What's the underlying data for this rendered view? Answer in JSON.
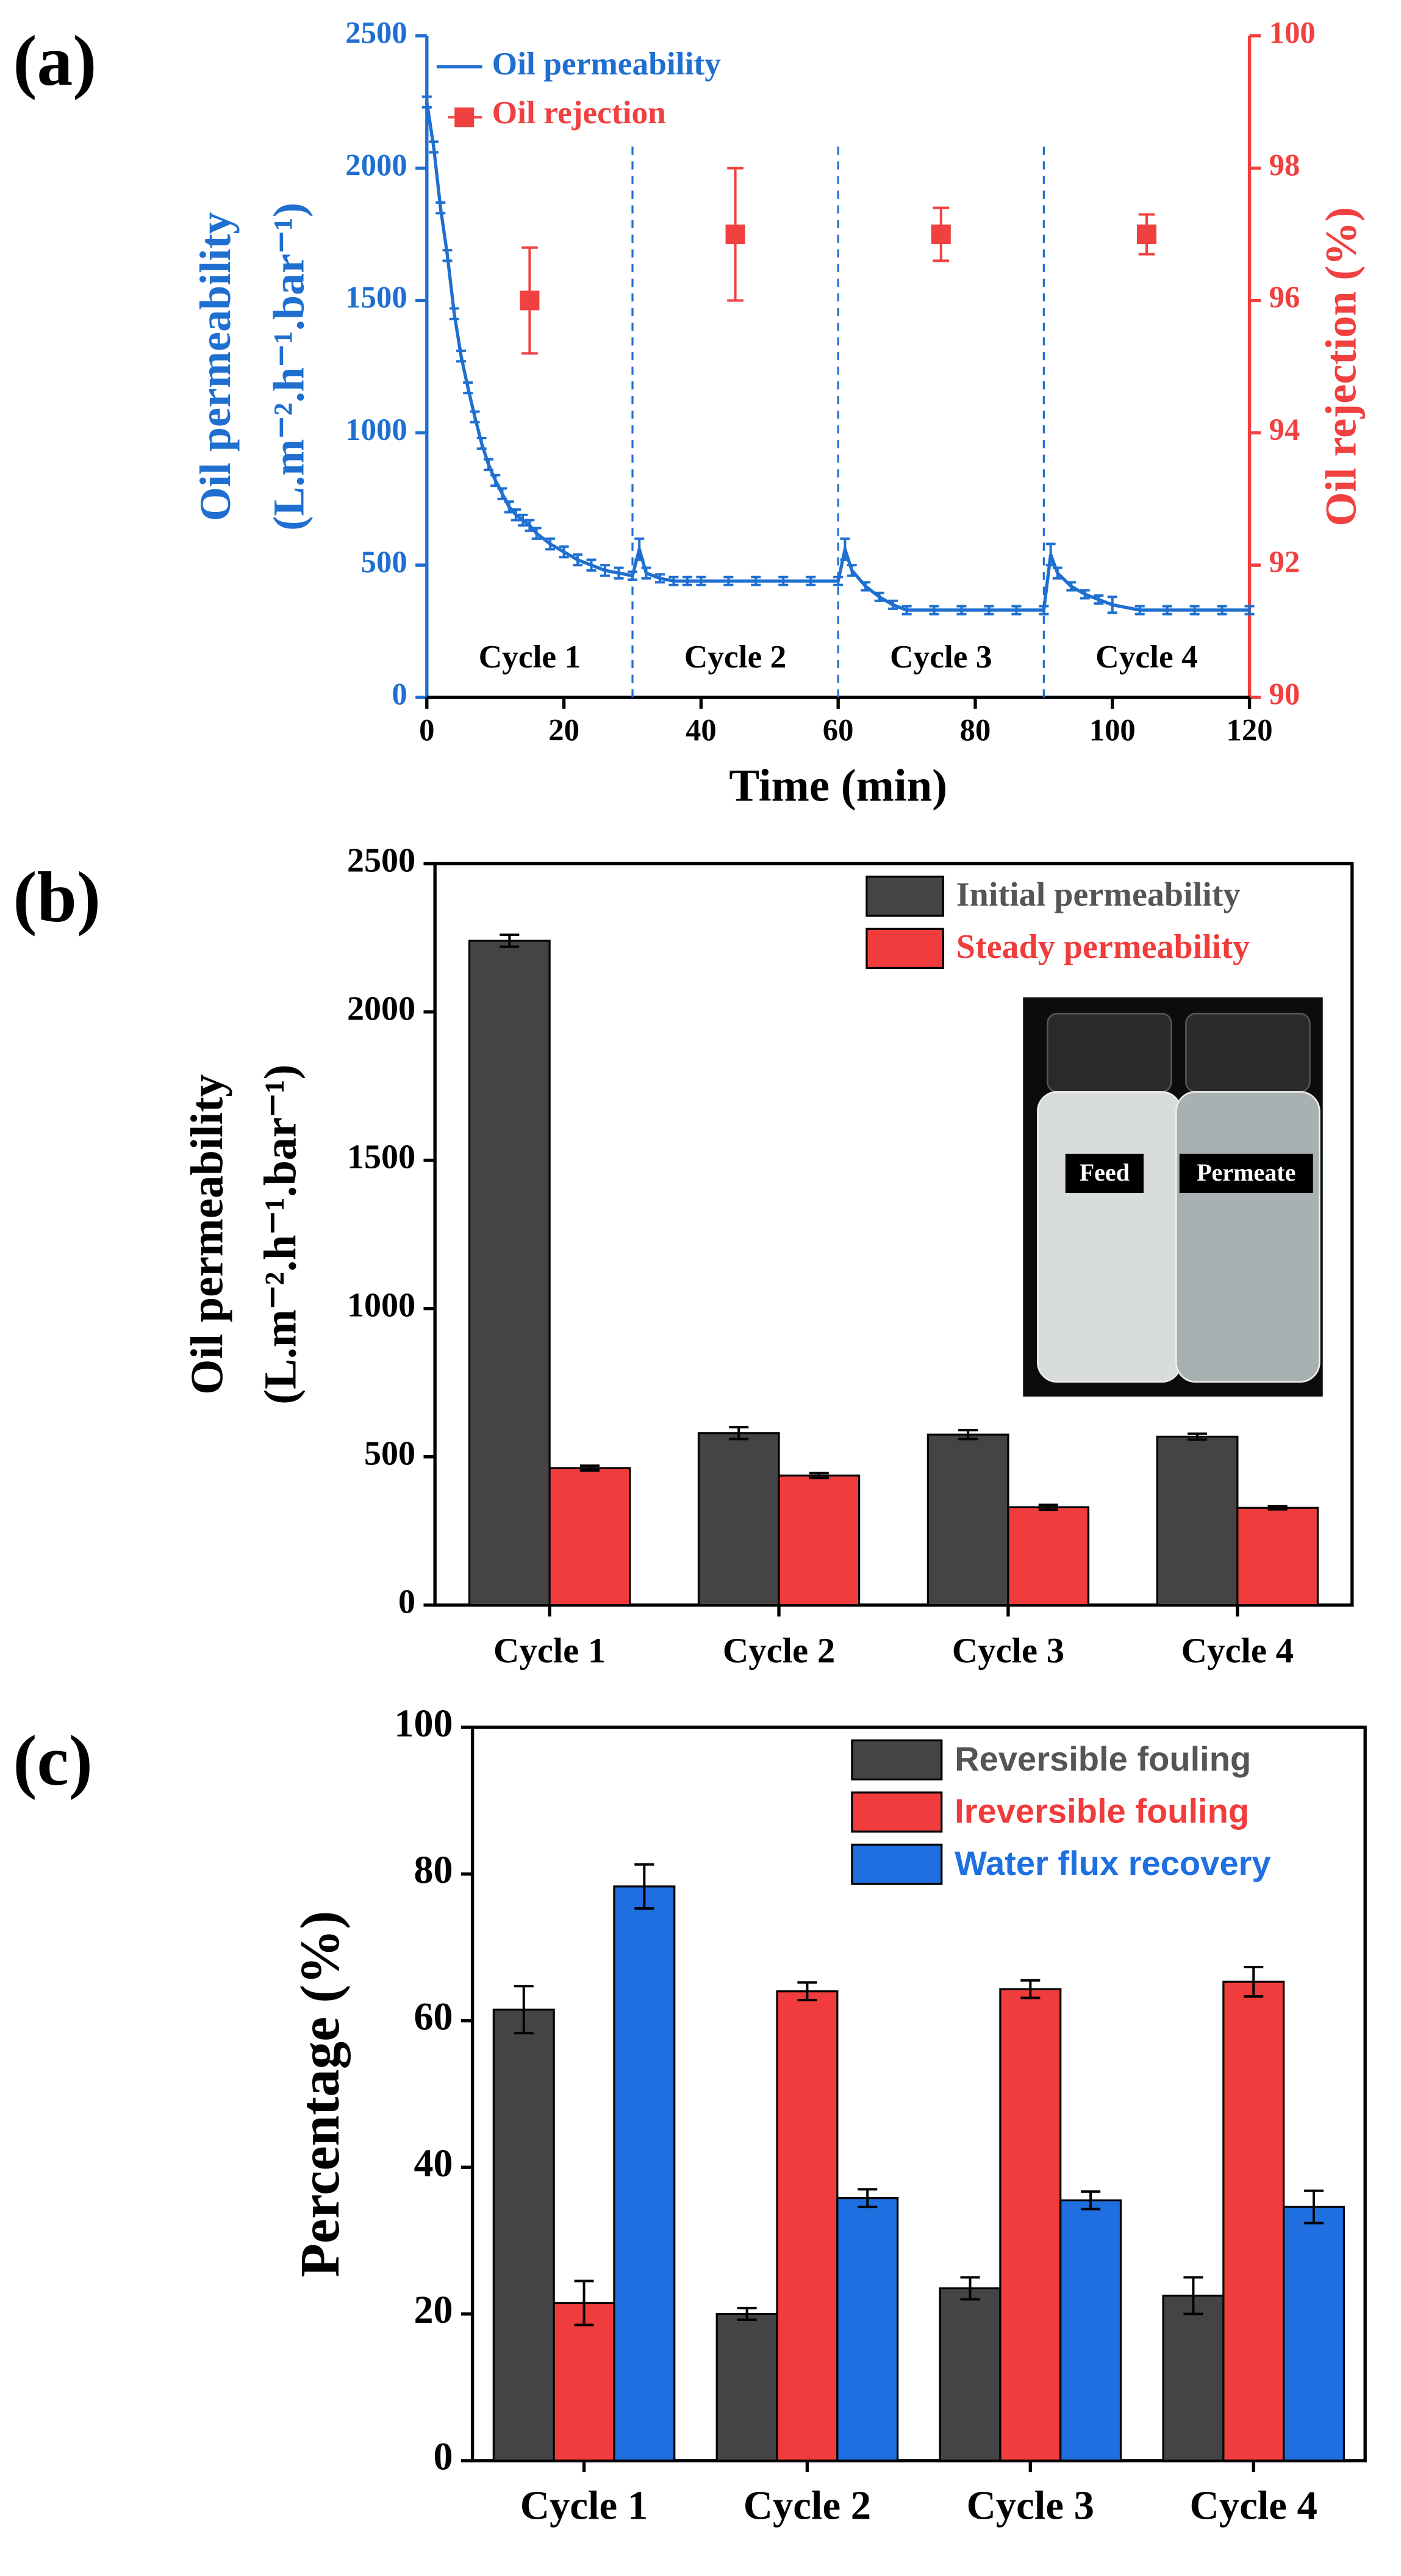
{
  "chart_data": [
    {
      "type": "line",
      "panel_label": "(a)",
      "x_label": "Time (min)",
      "y_label": [
        "Oil permeability",
        "(L.m⁻².h⁻¹.bar⁻¹)"
      ],
      "y2_label": "Oil rejection (%)",
      "xlim": [
        0,
        120
      ],
      "xticks": [
        0,
        20,
        40,
        60,
        80,
        100,
        120
      ],
      "ylim": [
        0,
        2500
      ],
      "yticks": [
        0,
        500,
        1000,
        1500,
        2000,
        2500
      ],
      "y2lim": [
        90,
        100
      ],
      "y2ticks": [
        90,
        92,
        94,
        96,
        98,
        100
      ],
      "cycle_boundaries": [
        30,
        60,
        90
      ],
      "cycle_labels": [
        "Cycle 1",
        "Cycle 2",
        "Cycle 3",
        "Cycle 4"
      ],
      "legend": "upper left",
      "series": [
        {
          "name": "Oil permeability",
          "color": "#1f6fd1",
          "x": [
            0,
            1,
            2,
            3,
            4,
            5,
            6,
            7,
            8,
            9,
            10,
            11,
            12,
            13,
            14,
            15,
            16,
            18,
            20,
            22,
            24,
            26,
            28,
            30,
            31,
            32,
            34,
            36,
            38,
            40,
            44,
            48,
            52,
            56,
            60,
            61,
            62,
            64,
            66,
            68,
            70,
            74,
            78,
            82,
            86,
            90,
            91,
            92,
            94,
            96,
            98,
            100,
            104,
            108,
            112,
            116,
            120
          ],
          "values": [
            2250,
            2080,
            1850,
            1670,
            1450,
            1290,
            1170,
            1060,
            960,
            880,
            820,
            770,
            720,
            690,
            670,
            650,
            620,
            580,
            550,
            520,
            500,
            480,
            470,
            460,
            560,
            470,
            450,
            440,
            440,
            440,
            440,
            440,
            440,
            440,
            440,
            560,
            480,
            420,
            380,
            350,
            330,
            330,
            330,
            330,
            330,
            330,
            540,
            470,
            420,
            390,
            370,
            350,
            330,
            330,
            330,
            330,
            330
          ],
          "errors": [
            20,
            20,
            20,
            20,
            20,
            20,
            20,
            20,
            20,
            20,
            20,
            20,
            20,
            20,
            20,
            20,
            20,
            20,
            20,
            20,
            20,
            20,
            20,
            15,
            40,
            20,
            15,
            15,
            15,
            15,
            15,
            15,
            15,
            15,
            15,
            40,
            20,
            15,
            15,
            15,
            15,
            15,
            15,
            15,
            15,
            15,
            40,
            20,
            15,
            15,
            15,
            30,
            15,
            15,
            15,
            15,
            15
          ]
        },
        {
          "name": "Oil rejection",
          "color": "#f04040",
          "axis": "y2",
          "x": [
            15,
            45,
            75,
            105
          ],
          "values": [
            96,
            97,
            97,
            97
          ],
          "errors": [
            0.8,
            1,
            0.4,
            0.3
          ]
        }
      ]
    },
    {
      "type": "bar",
      "panel_label": "(b)",
      "y_label": [
        "Oil permeability",
        "(L.m⁻².h⁻¹.bar⁻¹)"
      ],
      "categories": [
        "Cycle 1",
        "Cycle 2",
        "Cycle 3",
        "Cycle 4"
      ],
      "ylim": [
        0,
        2500
      ],
      "yticks": [
        0,
        500,
        1000,
        1500,
        2000,
        2500
      ],
      "legend": "upper right",
      "inset_labels": [
        "Feed",
        "Permeate"
      ],
      "series": [
        {
          "name": "Initial permeability",
          "color": "#444444",
          "values": [
            2240,
            580,
            575,
            568
          ],
          "errors": [
            20,
            20,
            15,
            10
          ]
        },
        {
          "name": "Steady permeability",
          "color": "#f03c3c",
          "values": [
            462,
            437,
            330,
            328
          ],
          "errors": [
            8,
            8,
            8,
            5
          ]
        }
      ]
    },
    {
      "type": "bar",
      "panel_label": "(c)",
      "y_label": [
        "Percentage (%)"
      ],
      "categories": [
        "Cycle 1",
        "Cycle 2",
        "Cycle 3",
        "Cycle 4"
      ],
      "ylim": [
        0,
        100
      ],
      "yticks": [
        0,
        20,
        40,
        60,
        80,
        100
      ],
      "legend": "upper right",
      "series": [
        {
          "name": "Reversible fouling",
          "color": "#444444",
          "values": [
            61.5,
            20,
            23.5,
            22.5
          ],
          "errors": [
            3.2,
            0.8,
            1.5,
            2.5
          ]
        },
        {
          "name": "Ireversible fouling",
          "color": "#f03c3c",
          "values": [
            21.5,
            64,
            64.3,
            65.3
          ],
          "errors": [
            3,
            1.2,
            1.2,
            2
          ]
        },
        {
          "name": "Water flux recovery",
          "color": "#1f6fe0",
          "values": [
            78.3,
            35.8,
            35.5,
            34.6
          ],
          "errors": [
            3,
            1.2,
            1.2,
            2.2
          ]
        }
      ]
    }
  ]
}
